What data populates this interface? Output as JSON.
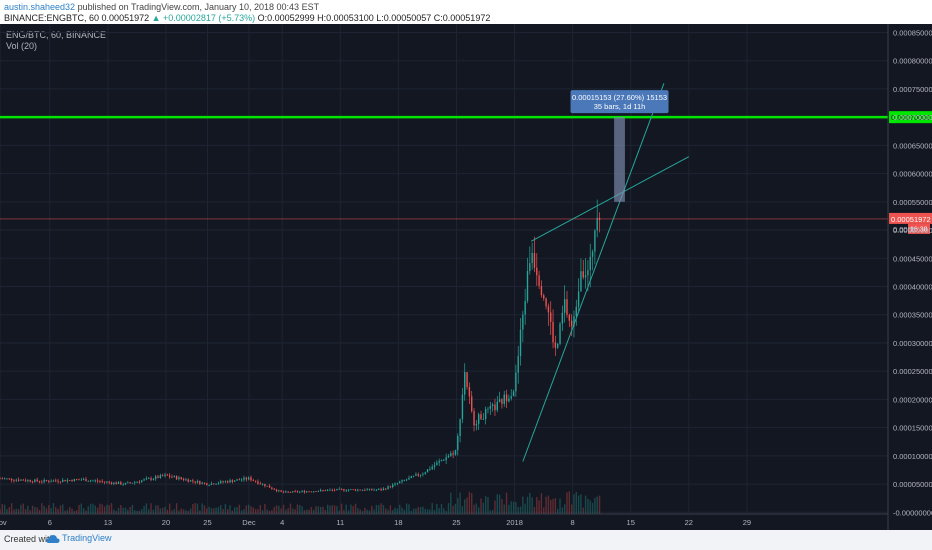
{
  "header": {
    "author": "austin.shaheed32",
    "published_text": "published on TradingView.com, January 10, 2018 00:43 EST",
    "symbol": "BINANCE:ENGBTC, 60",
    "last_price": "0.00051972",
    "change": "▲ +0.00002817 (+5.73%)",
    "ohlc": "O:0.00052999 H:0.00053100 L:0.00050057 C:0.00051972"
  },
  "legend": {
    "title": "ENG/BTC, 60, BINANCE",
    "volume": "Vol (20)"
  },
  "footer": {
    "created_with": "Created with",
    "brand": "TradingView"
  },
  "colors": {
    "background": "#131722",
    "up": "#26a69a",
    "down": "#ef5350",
    "support_line": "#00e600",
    "trend_line": "#26a69a",
    "price_line": "#ef5350",
    "measure_label": "#4a78b8"
  },
  "chart_data": {
    "type": "candlestick",
    "y_axis_ticks": [
      "0.00085000",
      "0.00080000",
      "0.00075000",
      "0.00070000",
      "0.00065000",
      "0.00060000",
      "0.00055000",
      "0.00050000",
      "0.00045000",
      "0.00040000",
      "0.00035000",
      "0.00030000",
      "0.00025000",
      "0.00020000",
      "0.00015000",
      "0.00010000",
      "0.00005000",
      "-0.00000000"
    ],
    "y_axis_tick_values": [
      0.00085,
      0.0008,
      0.00075,
      0.0007,
      0.00065,
      0.0006,
      0.00055,
      0.0005,
      0.00045,
      0.0004,
      0.00035,
      0.0003,
      0.00025,
      0.0002,
      0.00015,
      0.0001,
      5e-05,
      0
    ],
    "ylim": [
      -3e-06,
      0.000865
    ],
    "x_axis_ticks": [
      "Nov",
      "6",
      "13",
      "20",
      "25",
      "Dec",
      "4",
      "11",
      "18",
      "25",
      "2018",
      "8",
      "15",
      "22",
      "29"
    ],
    "x_axis_tick_days": [
      0,
      6,
      13,
      20,
      25,
      30,
      34,
      41,
      48,
      55,
      62,
      69,
      76,
      83,
      90
    ],
    "x_range_days": [
      0,
      107
    ],
    "series": [
      {
        "day": 0,
        "price": 6e-05
      },
      {
        "day": 5,
        "price": 5.5e-05
      },
      {
        "day": 10,
        "price": 5.8e-05
      },
      {
        "day": 15,
        "price": 5e-05
      },
      {
        "day": 20,
        "price": 6.5e-05
      },
      {
        "day": 25,
        "price": 5e-05
      },
      {
        "day": 30,
        "price": 6e-05
      },
      {
        "day": 34,
        "price": 3.5e-05
      },
      {
        "day": 41,
        "price": 4e-05
      },
      {
        "day": 46,
        "price": 4e-05
      },
      {
        "day": 51,
        "price": 7e-05
      },
      {
        "day": 55,
        "price": 0.00011
      },
      {
        "day": 56,
        "price": 0.00025
      },
      {
        "day": 57,
        "price": 0.00016
      },
      {
        "day": 60,
        "price": 0.00019
      },
      {
        "day": 62,
        "price": 0.00022
      },
      {
        "day": 63,
        "price": 0.00035
      },
      {
        "day": 64,
        "price": 0.00047
      },
      {
        "day": 66,
        "price": 0.00036
      },
      {
        "day": 67,
        "price": 0.00028
      },
      {
        "day": 68,
        "price": 0.00037
      },
      {
        "day": 69,
        "price": 0.00032
      },
      {
        "day": 70,
        "price": 0.00044
      },
      {
        "day": 71,
        "price": 0.00042
      },
      {
        "day": 72,
        "price": 0.00055
      },
      {
        "day": 72.5,
        "price": 0.00052
      }
    ],
    "annotations": {
      "horizontal_line": {
        "price": 0.0007,
        "label": "0.00070000"
      },
      "last_price_line": {
        "price": 0.00051972,
        "label": "0.00051972",
        "countdown": "16:38"
      },
      "partial_tick_label": "0.0005",
      "trend_lines": [
        {
          "from": {
            "day": 64,
            "price": 0.00048
          },
          "to": {
            "day": 83,
            "price": 0.00063
          }
        },
        {
          "from": {
            "day": 63,
            "price": 9e-05
          },
          "to": {
            "day": 80,
            "price": 0.00076
          }
        }
      ],
      "measure": {
        "from_day": 74,
        "to_day": 75.3,
        "from_price": 0.00055,
        "to_price": 0.0007,
        "line1": "0.00015153 (27.60%) 15153",
        "line2": "35 bars, 1d 11h"
      }
    }
  }
}
